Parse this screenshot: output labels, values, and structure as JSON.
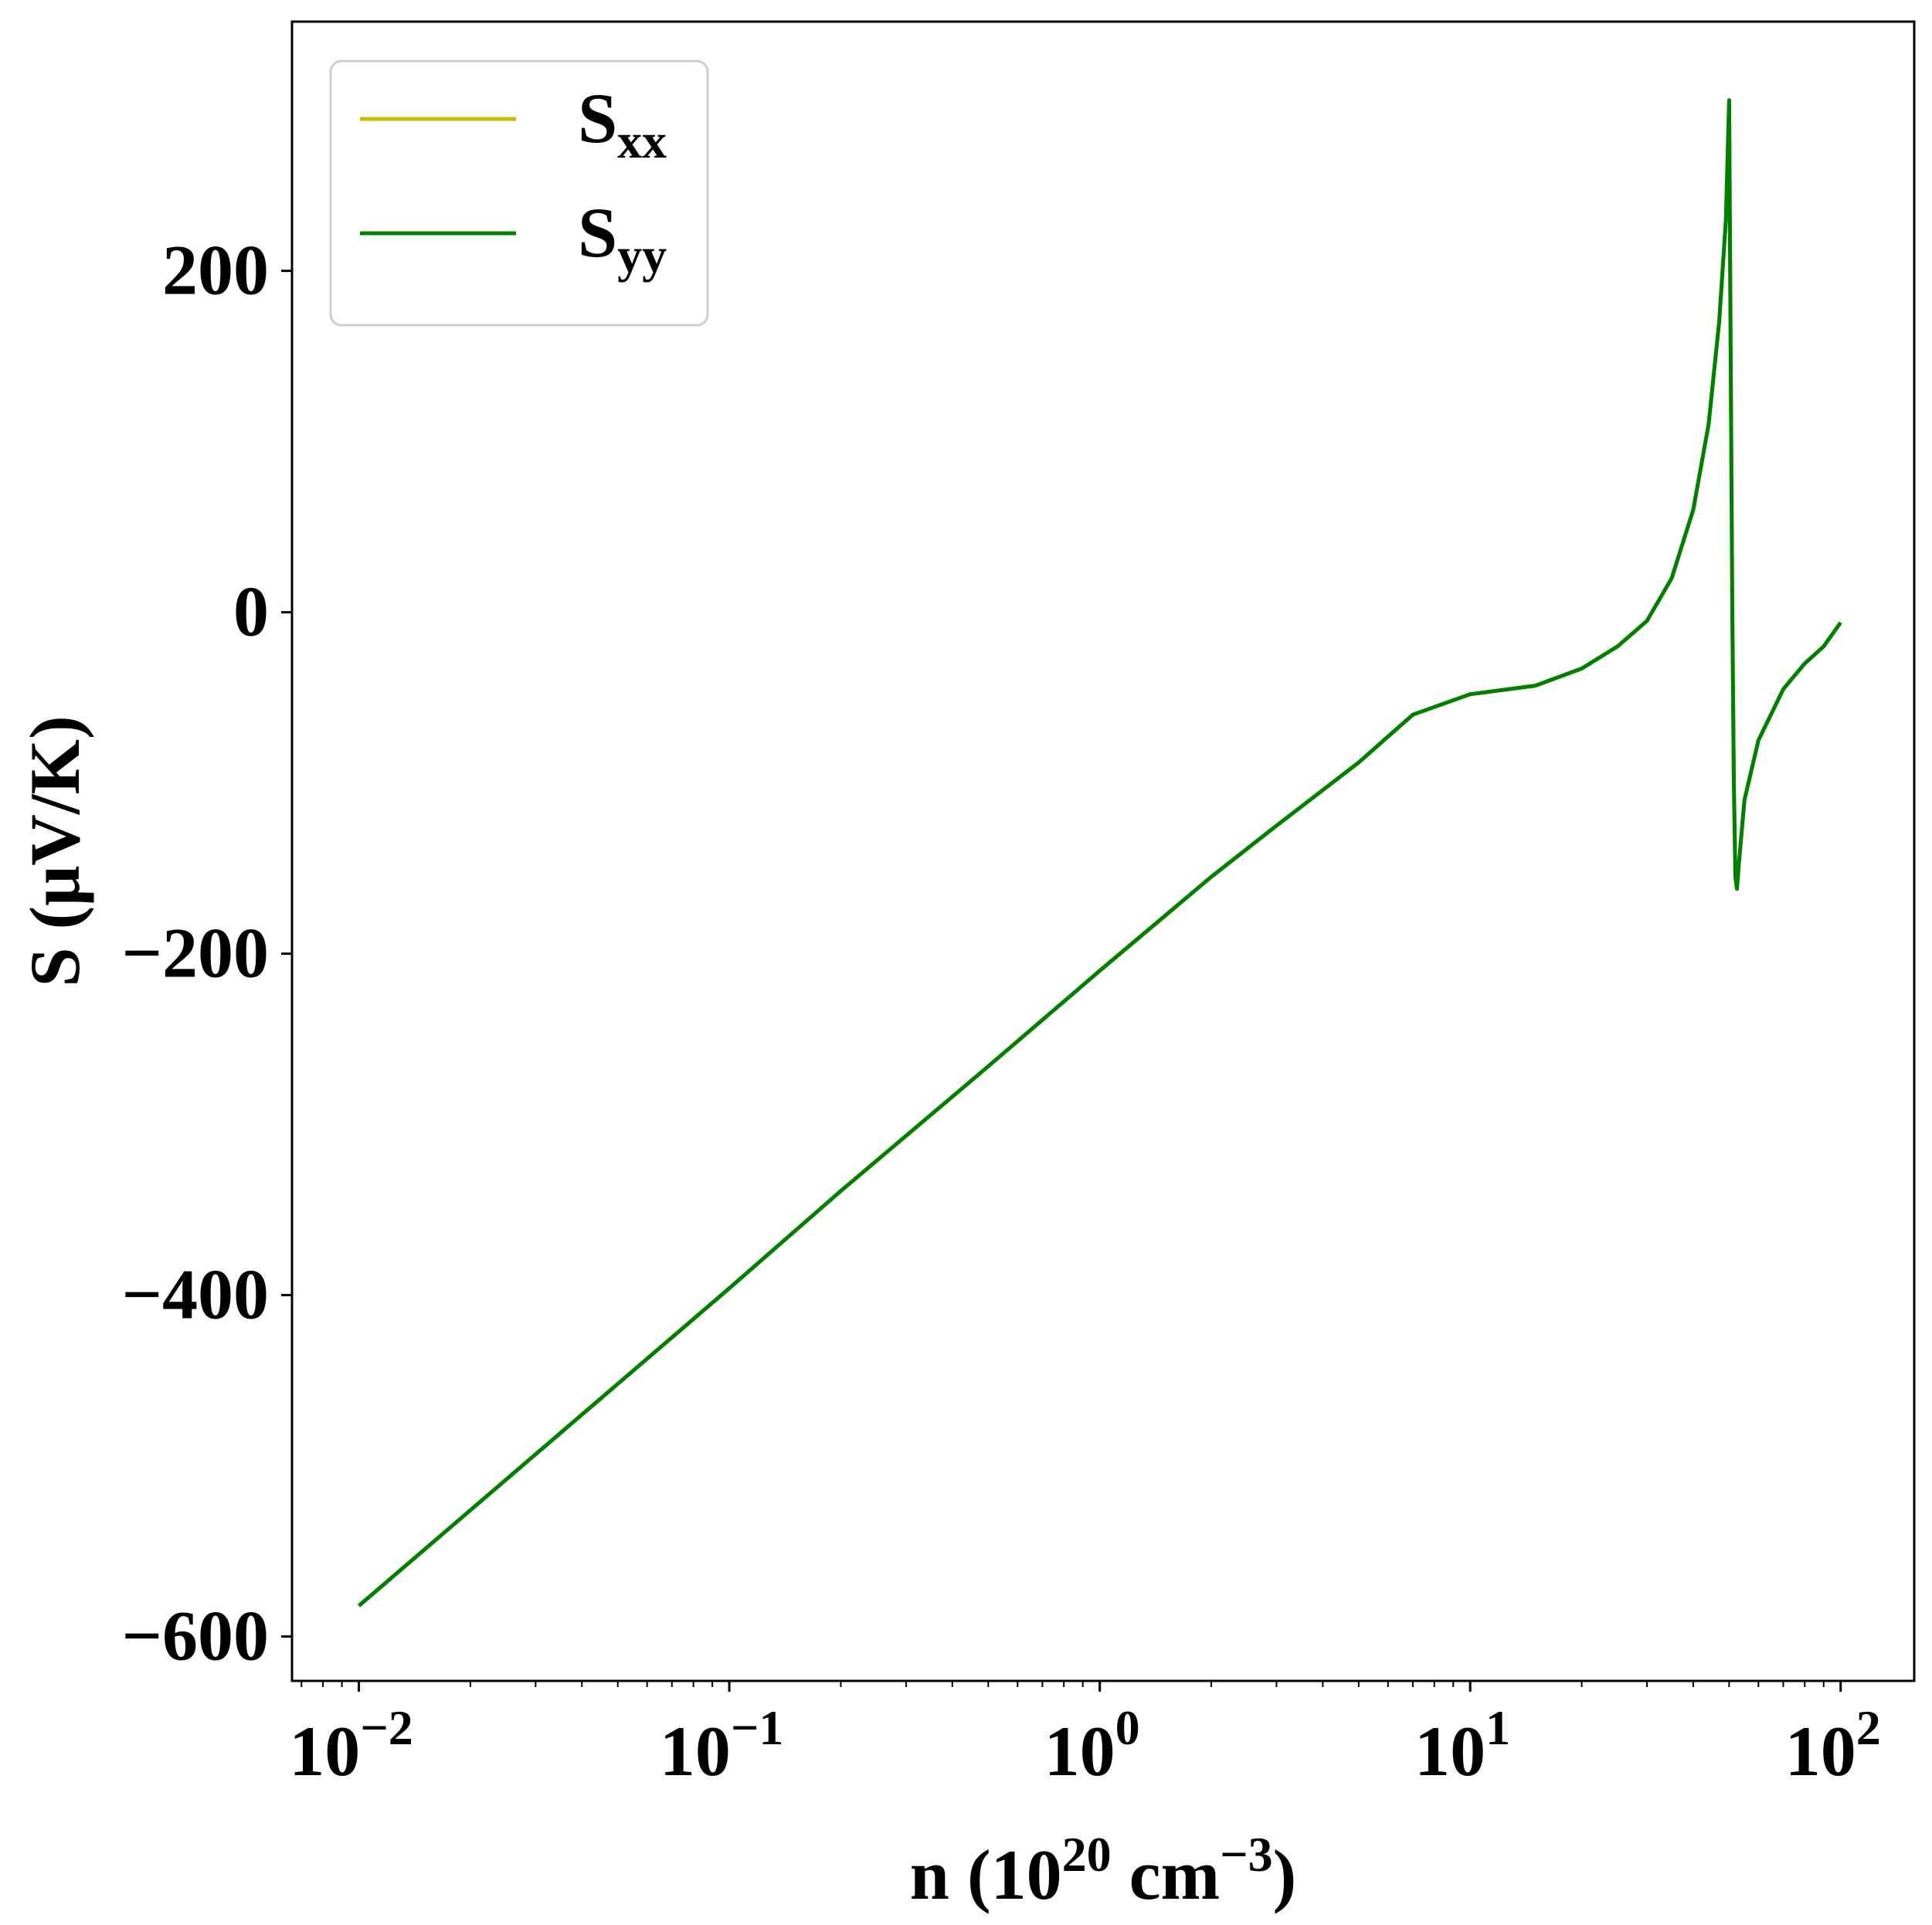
{
  "chart_data": {
    "type": "line",
    "x_scale": "log",
    "xlim": [
      0.0066,
      158
    ],
    "ylim": [
      -626,
      346
    ],
    "grid": false,
    "legend_position": "top-left",
    "x_ticks": [
      {
        "value": 0.01,
        "base": "10",
        "exp": "−2"
      },
      {
        "value": 0.1,
        "base": "10",
        "exp": "−1"
      },
      {
        "value": 1,
        "base": "10",
        "exp": "0"
      },
      {
        "value": 10,
        "base": "10",
        "exp": "1"
      },
      {
        "value": 100,
        "base": "10",
        "exp": "2"
      }
    ],
    "y_ticks": [
      {
        "value": 200,
        "label": "200"
      },
      {
        "value": 0,
        "label": "0"
      },
      {
        "value": -200,
        "label": "−200"
      },
      {
        "value": -400,
        "label": "−400"
      },
      {
        "value": -600,
        "label": "−600"
      }
    ],
    "xlabel": {
      "main": "n (10",
      "sup1": "20",
      "mid": " cm",
      "sup2": "−3",
      "end": ")"
    },
    "ylabel": "S (μV/K)",
    "series": [
      {
        "name": "S",
        "sub": "xx",
        "color": "#bfbf00",
        "points": [
          [
            0.01,
            -582
          ],
          [
            0.02,
            -526
          ],
          [
            0.05,
            -452
          ],
          [
            0.1,
            -396
          ],
          [
            0.2,
            -339
          ],
          [
            0.5,
            -266
          ],
          [
            1,
            -210
          ],
          [
            2,
            -155
          ],
          [
            3,
            -125
          ],
          [
            5,
            -88
          ],
          [
            7,
            -60
          ],
          [
            10,
            -48
          ],
          [
            15,
            -43
          ],
          [
            20,
            -33
          ],
          [
            25,
            -20
          ],
          [
            30,
            -5
          ],
          [
            35,
            20
          ],
          [
            40,
            60
          ],
          [
            44,
            110
          ],
          [
            47,
            170
          ],
          [
            49,
            230
          ],
          [
            50,
            300
          ],
          [
            50.5,
            150
          ],
          [
            51,
            0
          ],
          [
            51.5,
            -100
          ],
          [
            52,
            -155
          ],
          [
            52.5,
            -162
          ],
          [
            53,
            -150
          ],
          [
            55,
            -110
          ],
          [
            60,
            -75
          ],
          [
            70,
            -45
          ],
          [
            80,
            -30
          ],
          [
            90,
            -20
          ],
          [
            100,
            -6
          ]
        ]
      },
      {
        "name": "S",
        "sub": "yy",
        "color": "#008000",
        "points": [
          [
            0.01,
            -582
          ],
          [
            0.02,
            -526
          ],
          [
            0.05,
            -452
          ],
          [
            0.1,
            -396
          ],
          [
            0.2,
            -339
          ],
          [
            0.5,
            -266
          ],
          [
            1,
            -210
          ],
          [
            2,
            -155
          ],
          [
            3,
            -125
          ],
          [
            5,
            -88
          ],
          [
            7,
            -60
          ],
          [
            10,
            -48
          ],
          [
            15,
            -43
          ],
          [
            20,
            -33
          ],
          [
            25,
            -20
          ],
          [
            30,
            -5
          ],
          [
            35,
            20
          ],
          [
            40,
            60
          ],
          [
            44,
            110
          ],
          [
            47,
            170
          ],
          [
            49,
            230
          ],
          [
            50,
            300
          ],
          [
            50.5,
            150
          ],
          [
            51,
            0
          ],
          [
            51.5,
            -100
          ],
          [
            52,
            -155
          ],
          [
            52.5,
            -162
          ],
          [
            53,
            -150
          ],
          [
            55,
            -110
          ],
          [
            60,
            -75
          ],
          [
            70,
            -45
          ],
          [
            80,
            -30
          ],
          [
            90,
            -20
          ],
          [
            100,
            -6
          ]
        ]
      }
    ]
  }
}
